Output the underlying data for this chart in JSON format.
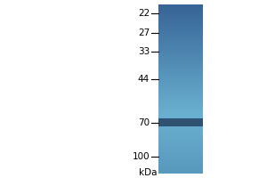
{
  "kda_label": "kDa",
  "markers": [
    100,
    70,
    44,
    33,
    27,
    22
  ],
  "band_kda": 70,
  "fig_width": 3.0,
  "fig_height": 2.0,
  "dpi": 100,
  "background_color": "#ffffff",
  "lane_color_top": "#5899be",
  "lane_color_mid": "#6ab0d0",
  "lane_color_bottom": "#3a6b9a",
  "band_color": "#2b4a6a",
  "band_alpha": 0.92,
  "ylim_log_min": 20,
  "ylim_log_max": 120,
  "label_fontsize": 7.5,
  "kda_fontsize": 7.5
}
